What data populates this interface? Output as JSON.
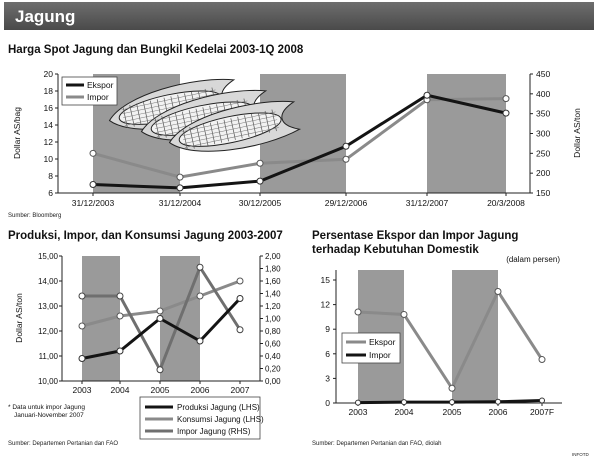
{
  "header": {
    "title": "Jagung"
  },
  "colors": {
    "band": "#9a9a9a",
    "dark": "#141414",
    "gray": "#8a8a8a",
    "mid": "#6f6f6f",
    "white": "#ffffff"
  },
  "chart_data": [
    {
      "type": "line",
      "title": "Harga Spot Jagung dan Bungkil Kedelai 2003-1Q 2008",
      "ylabel": "Dollar AS/bag",
      "y2label": "Dollar AS/ton",
      "x": [
        "31/12/2003",
        "31/12/2004",
        "30/12/2005",
        "29/12/2006",
        "31/12/2007",
        "20/3/2008"
      ],
      "ylim": [
        6,
        20
      ],
      "y2lim": [
        150,
        450
      ],
      "yticks": [
        "6",
        "8",
        "10",
        "12",
        "14",
        "16",
        "18",
        "20"
      ],
      "y2ticks": [
        "150",
        "200",
        "250",
        "300",
        "350",
        "400",
        "450"
      ],
      "legend": [
        "Ekspor",
        "Impor"
      ],
      "series": [
        {
          "name": "Ekspor",
          "axis": "left",
          "values": [
            7.0,
            6.6,
            7.4,
            11.5,
            17.5,
            15.4
          ]
        },
        {
          "name": "Impor",
          "axis": "right",
          "values": [
            250,
            190,
            225,
            235,
            385,
            388
          ]
        }
      ],
      "source": "Sumber: Bloomberg"
    },
    {
      "type": "line",
      "title": "Produksi, Impor, dan Konsumsi Jagung 2003-2007",
      "ylabel": "Dollar AS/ton",
      "x": [
        "2003",
        "2004",
        "2005",
        "2006",
        "2007"
      ],
      "ylim": [
        10,
        15
      ],
      "y2lim": [
        0,
        2
      ],
      "yticks": [
        "10,00",
        "11,00",
        "12,00",
        "13,00",
        "14,00",
        "15,00"
      ],
      "y2ticks": [
        "0,00",
        "0,20",
        "0,40",
        "0,60",
        "0,80",
        "1,00",
        "1,20",
        "1,40",
        "1,60",
        "1,80",
        "2,00"
      ],
      "legend": [
        "Produksi Jagung (LHS)",
        "Konsumsi Jagung (LHS)",
        "Impor Jagung (RHS)"
      ],
      "series": [
        {
          "name": "Produksi Jagung (LHS)",
          "axis": "left",
          "values": [
            10.9,
            11.2,
            12.5,
            11.6,
            13.3
          ]
        },
        {
          "name": "Konsumsi Jagung (LHS)",
          "axis": "left",
          "values": [
            12.2,
            12.6,
            12.8,
            13.4,
            14.0
          ]
        },
        {
          "name": "Impor Jagung (RHS)",
          "axis": "right",
          "values": [
            1.36,
            1.36,
            0.18,
            1.82,
            0.82
          ]
        }
      ],
      "note": [
        "* Data untuk impor Jagung",
        "Januari-November 2007"
      ],
      "source": "Sumber: Departemen Pertanian dan FAO"
    },
    {
      "type": "line",
      "title": [
        "Persentase Ekspor dan Impor Jagung",
        "terhadap Kebutuhan Domestik"
      ],
      "unit": "(dalam persen)",
      "x": [
        "2003",
        "2004",
        "2005",
        "2006",
        "2007F"
      ],
      "ylim": [
        0,
        15
      ],
      "yticks": [
        "0",
        "3",
        "6",
        "9",
        "12",
        "15"
      ],
      "legend": [
        "Ekspor",
        "Impor"
      ],
      "series": [
        {
          "name": "Ekspor",
          "values": [
            11.1,
            10.8,
            1.8,
            13.6,
            5.3
          ]
        },
        {
          "name": "Impor",
          "values": [
            0.05,
            0.1,
            0.1,
            0.15,
            0.3
          ]
        }
      ],
      "source": "Sumber: Departemen Pertanian dan FAO, diolah"
    }
  ],
  "credit": "INFOTD"
}
